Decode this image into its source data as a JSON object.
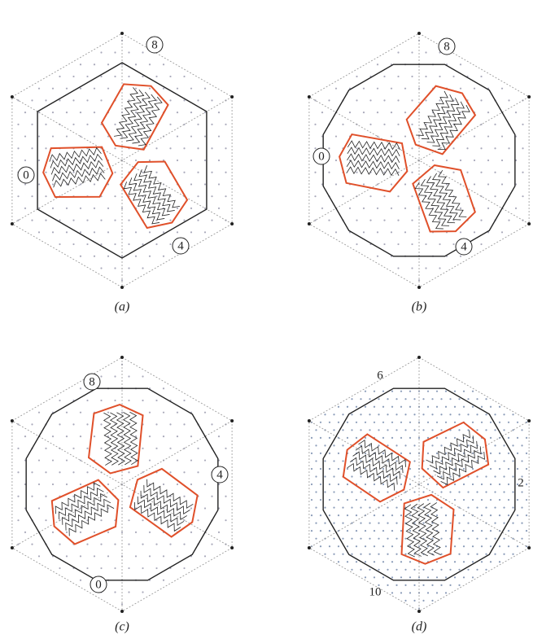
{
  "panels": [
    {
      "label": "(a)",
      "markers": [
        "8",
        "0",
        "4"
      ]
    },
    {
      "label": "(b)",
      "markers": [
        "8",
        "0",
        "4"
      ]
    },
    {
      "label": "(c)",
      "markers": [
        "8",
        "4",
        "0"
      ]
    },
    {
      "label": "(d)",
      "markers": [
        "6",
        "2",
        "10"
      ]
    }
  ]
}
